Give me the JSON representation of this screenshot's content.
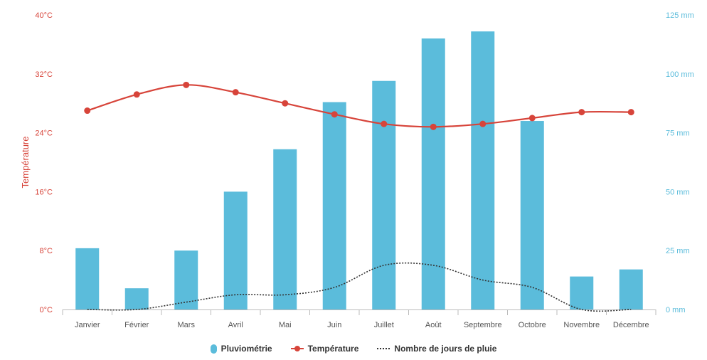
{
  "chart_data": {
    "type": "bar",
    "categories": [
      "Janvier",
      "Février",
      "Mars",
      "Avril",
      "Mai",
      "Juin",
      "Juillet",
      "Août",
      "Septembre",
      "Octobre",
      "Novembre",
      "Décembre"
    ],
    "series": [
      {
        "name": "Pluviométrie",
        "type": "bar",
        "axis": "right",
        "values": [
          26,
          9,
          25,
          50,
          68,
          88,
          97,
          115,
          118,
          80,
          14,
          17
        ]
      },
      {
        "name": "Température",
        "type": "line",
        "axis": "left",
        "values": [
          27,
          29.2,
          30.5,
          29.5,
          28,
          26.5,
          25.2,
          24.8,
          25.2,
          26,
          26.8,
          26.8
        ]
      },
      {
        "name": "Nombre de jours de pluie",
        "type": "line",
        "axis": "left",
        "style": "dotted",
        "values": [
          0,
          0,
          1,
          2,
          2,
          3,
          6,
          6,
          4,
          3,
          0,
          0
        ]
      }
    ],
    "ylabel": "Température",
    "ylim": [
      0,
      40
    ],
    "y_ticks": [
      "0°C",
      "8°C",
      "16°C",
      "24°C",
      "32°C",
      "40°C"
    ],
    "y2lim": [
      0,
      125
    ],
    "y2_ticks": [
      "0 mm",
      "25 mm",
      "50 mm",
      "75 mm",
      "100 mm",
      "125 mm"
    ],
    "grid": false,
    "legend_position": "bottom",
    "colors": {
      "bar": "#5bbcdb",
      "temperature": "#d7443a",
      "rain_days": "#333333",
      "left_axis_text": "#d7443a",
      "right_axis_text": "#5bbcdb",
      "x_text": "#555555"
    }
  }
}
